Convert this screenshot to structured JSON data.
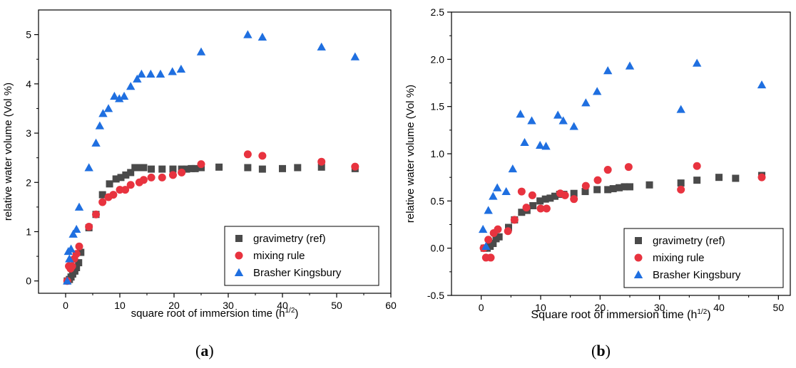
{
  "panels": [
    {
      "label_open": "(",
      "label_letter": "a",
      "label_close": ")"
    },
    {
      "label_open": "(",
      "label_letter": "b",
      "label_close": ")"
    }
  ],
  "chart_data": [
    {
      "type": "scatter",
      "xlabel": "square root of immersion time (h",
      "xlabel_sup": "1/2",
      "xlabel_end": ")",
      "ylabel": "relative water volume (Vol %)",
      "xlim": [
        -5,
        60
      ],
      "ylim": [
        -0.25,
        5.5
      ],
      "xticks": [
        0,
        10,
        20,
        30,
        40,
        50,
        60
      ],
      "yticks": [
        0,
        1,
        2,
        3,
        4,
        5
      ],
      "tick_labels_x": [
        "0",
        "10",
        "20",
        "30",
        "40",
        "50",
        "60"
      ],
      "tick_labels_y": [
        "0",
        "1",
        "2",
        "3",
        "4",
        "5"
      ],
      "legend_position": "bottom-right",
      "series": [
        {
          "name": "gravimetry (ref)",
          "marker": "square",
          "color": "#4a4a4a",
          "x": [
            0.3,
            0.7,
            1.0,
            1.3,
            1.7,
            2.0,
            2.4,
            2.8,
            4.3,
            5.6,
            6.8,
            8.1,
            9.3,
            10.2,
            11.1,
            12.0,
            12.8,
            13.6,
            14.4,
            15.8,
            17.8,
            19.8,
            21.4,
            22.3,
            23.2,
            23.9,
            25.0,
            28.3,
            33.6,
            36.3,
            40.0,
            42.8,
            47.2,
            53.4
          ],
          "y": [
            0.0,
            0.03,
            0.08,
            0.14,
            0.2,
            0.27,
            0.37,
            0.58,
            1.08,
            1.35,
            1.75,
            1.97,
            2.07,
            2.1,
            2.15,
            2.2,
            2.3,
            2.3,
            2.3,
            2.27,
            2.27,
            2.27,
            2.27,
            2.27,
            2.28,
            2.28,
            2.3,
            2.31,
            2.3,
            2.27,
            2.28,
            2.3,
            2.31,
            2.28
          ]
        },
        {
          "name": "mixing rule",
          "marker": "circle",
          "color": "#e8333f",
          "x": [
            0.3,
            0.6,
            0.9,
            1.2,
            1.6,
            2.0,
            2.5,
            4.3,
            5.6,
            6.8,
            7.9,
            8.8,
            10.0,
            11.0,
            12.0,
            13.6,
            14.4,
            15.8,
            17.8,
            19.8,
            21.4,
            25.0,
            33.6,
            36.3,
            47.2,
            53.4
          ],
          "y": [
            0.0,
            0.3,
            0.25,
            0.3,
            0.45,
            0.55,
            0.7,
            1.1,
            1.35,
            1.6,
            1.7,
            1.75,
            1.85,
            1.85,
            1.95,
            2.0,
            2.05,
            2.1,
            2.1,
            2.15,
            2.2,
            2.37,
            2.57,
            2.54,
            2.42,
            2.32
          ]
        },
        {
          "name": "Brasher Kingsbury",
          "marker": "triangle",
          "color": "#1f6fe0",
          "x": [
            0.3,
            0.5,
            0.7,
            1.0,
            1.4,
            2.0,
            2.5,
            4.3,
            5.6,
            6.3,
            6.9,
            7.9,
            9.0,
            9.9,
            10.8,
            12.0,
            13.2,
            14.0,
            15.7,
            17.5,
            19.7,
            21.3,
            25.0,
            33.6,
            36.3,
            47.2,
            53.4
          ],
          "y": [
            0.0,
            0.6,
            0.45,
            0.65,
            0.95,
            1.05,
            1.5,
            2.3,
            2.8,
            3.15,
            3.4,
            3.5,
            3.75,
            3.7,
            3.75,
            3.95,
            4.1,
            4.2,
            4.2,
            4.2,
            4.25,
            4.3,
            4.65,
            5.0,
            4.95,
            4.75,
            4.55
          ]
        }
      ]
    },
    {
      "type": "scatter",
      "xlabel": "Square root of immersion time (h",
      "xlabel_sup": "1/2",
      "xlabel_end": ")",
      "ylabel": "relative water volume (Vol %)",
      "xlim": [
        -5,
        52
      ],
      "ylim": [
        -0.5,
        2.5
      ],
      "xticks": [
        0,
        10,
        20,
        30,
        40,
        50
      ],
      "yticks": [
        -0.5,
        0.0,
        0.5,
        1.0,
        1.5,
        2.0,
        2.5
      ],
      "tick_labels_x": [
        "0",
        "10",
        "20",
        "30",
        "40",
        "50"
      ],
      "tick_labels_y": [
        "-0.5",
        "0.0",
        "0.5",
        "1.0",
        "1.5",
        "2.0",
        "2.5"
      ],
      "legend_position": "bottom-right",
      "series": [
        {
          "name": "gravimetry (ref)",
          "marker": "square",
          "color": "#4a4a4a",
          "x": [
            0.5,
            1.0,
            1.5,
            2.0,
            2.5,
            3.0,
            4.6,
            5.6,
            6.8,
            7.7,
            8.7,
            9.9,
            10.8,
            11.6,
            12.4,
            13.2,
            13.9,
            15.6,
            17.5,
            19.5,
            21.3,
            22.2,
            23.2,
            24.1,
            25.0,
            28.3,
            33.6,
            36.3,
            40.0,
            42.8,
            47.2
          ],
          "y": [
            0.0,
            0.0,
            0.02,
            0.05,
            0.1,
            0.12,
            0.22,
            0.3,
            0.38,
            0.4,
            0.45,
            0.5,
            0.52,
            0.53,
            0.55,
            0.57,
            0.57,
            0.58,
            0.6,
            0.62,
            0.62,
            0.63,
            0.64,
            0.65,
            0.65,
            0.67,
            0.69,
            0.72,
            0.75,
            0.74,
            0.77
          ]
        },
        {
          "name": "mixing rule",
          "marker": "circle",
          "color": "#e8333f",
          "x": [
            0.4,
            0.8,
            1.2,
            1.6,
            2.1,
            2.8,
            4.5,
            5.6,
            6.8,
            7.6,
            8.6,
            10.0,
            11.0,
            13.3,
            14.1,
            15.6,
            17.6,
            19.6,
            21.3,
            24.8,
            33.6,
            36.3,
            47.2
          ],
          "y": [
            0.0,
            -0.1,
            0.09,
            -0.1,
            0.16,
            0.2,
            0.18,
            0.3,
            0.6,
            0.43,
            0.56,
            0.42,
            0.42,
            0.58,
            0.56,
            0.52,
            0.66,
            0.72,
            0.83,
            0.86,
            0.62,
            0.87,
            0.75
          ]
        },
        {
          "name": "Brasher Kingsbury",
          "marker": "triangle",
          "color": "#1f6fe0",
          "x": [
            0.3,
            0.8,
            1.2,
            2.0,
            2.7,
            4.2,
            5.3,
            6.6,
            7.3,
            8.5,
            9.9,
            10.9,
            12.9,
            13.8,
            15.6,
            17.6,
            19.5,
            21.3,
            25.0,
            33.6,
            36.3,
            47.2
          ],
          "y": [
            0.2,
            0.02,
            0.4,
            0.55,
            0.64,
            0.6,
            0.84,
            1.42,
            1.12,
            1.35,
            1.09,
            1.08,
            1.41,
            1.35,
            1.29,
            1.54,
            1.66,
            1.88,
            1.93,
            1.47,
            1.96,
            1.73
          ]
        }
      ]
    }
  ]
}
